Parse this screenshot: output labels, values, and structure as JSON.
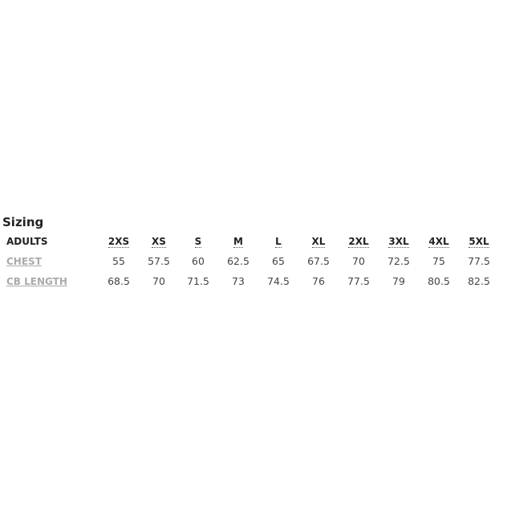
{
  "title": "Sizing",
  "table": {
    "header_label": "ADULTS",
    "sizes": [
      "2XS",
      "XS",
      "S",
      "M",
      "L",
      "XL",
      "2XL",
      "3XL",
      "4XL",
      "5XL"
    ],
    "rows": [
      {
        "label": "CHEST",
        "values": [
          "55",
          "57.5",
          "60",
          "62.5",
          "65",
          "67.5",
          "70",
          "72.5",
          "75",
          "77.5"
        ]
      },
      {
        "label": "CB LENGTH",
        "values": [
          "68.5",
          "70",
          "71.5",
          "73",
          "74.5",
          "76",
          "77.5",
          "79",
          "80.5",
          "82.5"
        ]
      }
    ]
  },
  "colors": {
    "heading": "#222222",
    "link_label": "#aaaaaa",
    "value": "#444444"
  }
}
